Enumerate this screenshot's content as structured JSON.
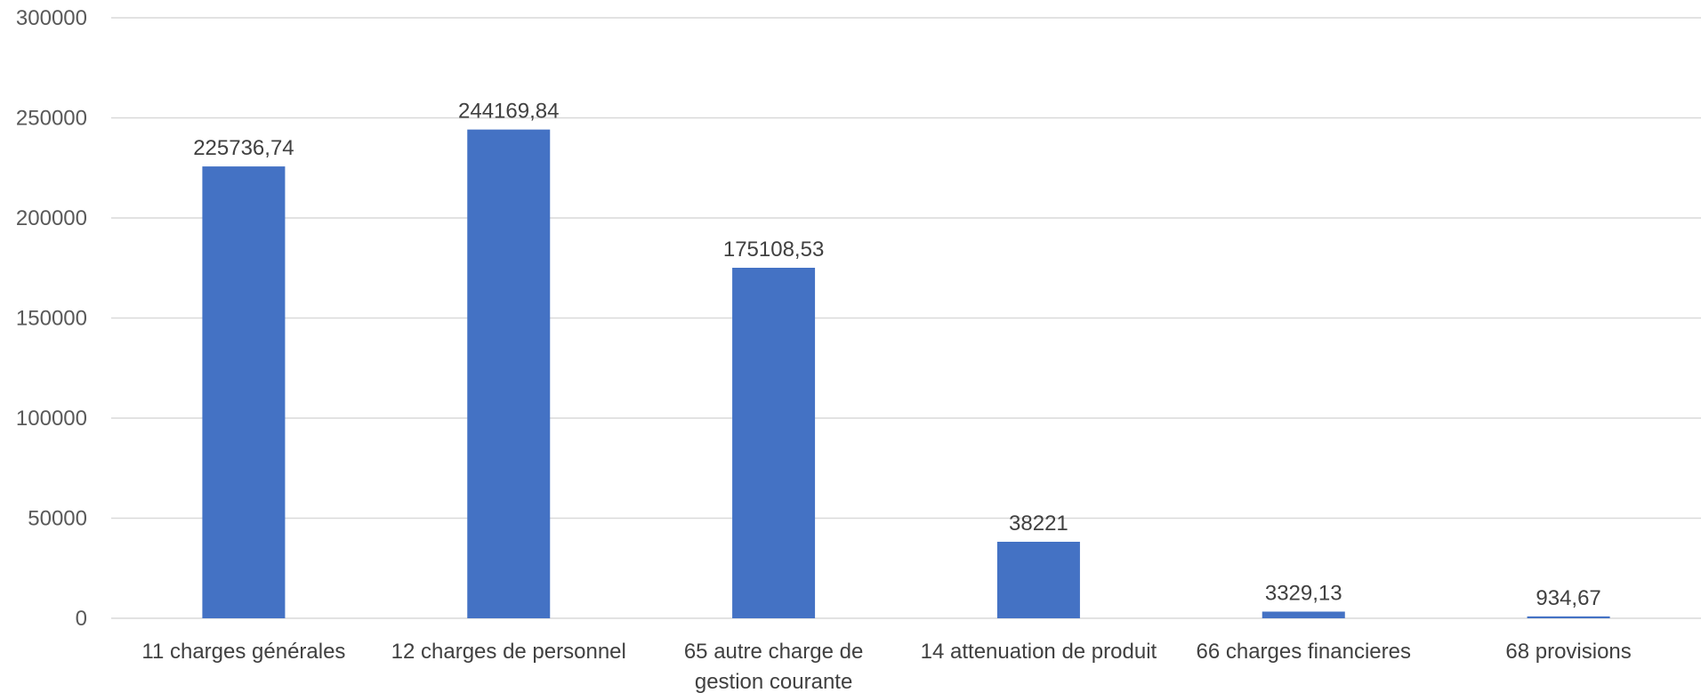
{
  "chart_data": {
    "type": "bar",
    "categories": [
      [
        "11 charges générales"
      ],
      [
        "12 charges de personnel"
      ],
      [
        "65 autre charge de",
        "gestion courante"
      ],
      [
        "14 attenuation de produit"
      ],
      [
        "66 charges financieres"
      ],
      [
        "68 provisions"
      ]
    ],
    "values": [
      225736.74,
      244169.84,
      175108.53,
      38221,
      3329.13,
      934.67
    ],
    "data_labels": [
      "225736,74",
      "244169,84",
      "175108,53",
      "38221",
      "3329,13",
      "934,67"
    ],
    "y_ticks": [
      "0",
      "50000",
      "100000",
      "150000",
      "200000",
      "250000",
      "300000"
    ],
    "ylim": [
      0,
      300000
    ],
    "title": "",
    "xlabel": "",
    "ylabel": "",
    "grid": true,
    "legend": "none",
    "bar_color": "#4472C4",
    "grid_color": "#D9D9D9",
    "axis_color": "#D9D9D9"
  }
}
